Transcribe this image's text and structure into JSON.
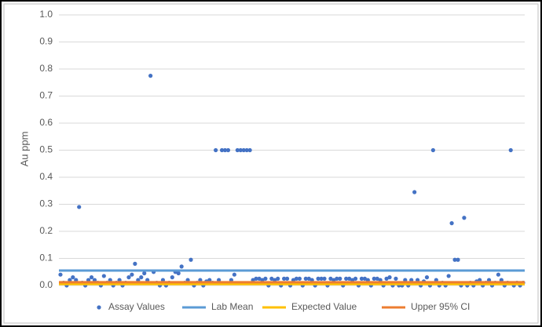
{
  "chart_data": {
    "type": "scatter",
    "y_label": "Au ppm",
    "ylim": [
      0,
      1
    ],
    "yticks": [
      {
        "value": 0,
        "label": "0.0"
      },
      0.1,
      0.2,
      0.3,
      0.4,
      0.5,
      0.6,
      0.7,
      0.8,
      0.9,
      {
        "value": 1,
        "label": "1.0"
      }
    ],
    "grid": true,
    "legend": "bottom",
    "series": [
      {
        "name": "Assay Values",
        "type": "scatter",
        "color": "#4472c4",
        "values": [
          0.04,
          0.01,
          0.0,
          0.02,
          0.03,
          0.02,
          0.29,
          0.01,
          0.0,
          0.02,
          0.03,
          0.02,
          0.01,
          0.0,
          0.035,
          0.01,
          0.02,
          0.0,
          0.01,
          0.02,
          0.0,
          0.01,
          0.03,
          0.04,
          0.08,
          0.02,
          0.03,
          0.045,
          0.02,
          0.775,
          0.05,
          0.01,
          0.0,
          0.02,
          0.0,
          0.01,
          0.03,
          0.05,
          0.045,
          0.07,
          0.01,
          0.02,
          0.095,
          0.0,
          0.01,
          0.02,
          0.0,
          0.015,
          0.02,
          0.01,
          0.5,
          0.02,
          0.5,
          0.5,
          0.5,
          0.02,
          0.04,
          0.5,
          0.5,
          0.5,
          0.5,
          0.5,
          0.02,
          0.025,
          0.025,
          0.02,
          0.025,
          0.0,
          0.025,
          0.02,
          0.025,
          0.0,
          0.025,
          0.025,
          0.0,
          0.02,
          0.025,
          0.025,
          0.0,
          0.025,
          0.025,
          0.02,
          0.0,
          0.025,
          0.025,
          0.025,
          0.0,
          0.025,
          0.02,
          0.025,
          0.025,
          0.0,
          0.025,
          0.025,
          0.02,
          0.025,
          0.0,
          0.025,
          0.025,
          0.02,
          0.0,
          0.025,
          0.025,
          0.02,
          0.0,
          0.025,
          0.03,
          0.0,
          0.025,
          0.0,
          0.0,
          0.02,
          0.0,
          0.02,
          0.345,
          0.02,
          0.0,
          0.015,
          0.03,
          0.0,
          0.5,
          0.02,
          0.0,
          0.01,
          0.0,
          0.035,
          0.23,
          0.095,
          0.095,
          0.0,
          0.25,
          0.0,
          0.01,
          0.0,
          0.015,
          0.02,
          0.0,
          0.01,
          0.02,
          0.0,
          0.01,
          0.04,
          0.02,
          0.0,
          0.01,
          0.5,
          0.0,
          0.01,
          0.0,
          0.01
        ]
      },
      {
        "name": "Lab Mean",
        "type": "hline",
        "color": "#5b9bd5",
        "values": [
          0.055
        ]
      },
      {
        "name": "Expected Value",
        "type": "hline",
        "color": "#ffc000",
        "values": [
          0.005
        ]
      },
      {
        "name": "Upper 95% CI",
        "type": "hline",
        "color": "#ed7d31",
        "values": [
          0.012
        ]
      }
    ]
  }
}
